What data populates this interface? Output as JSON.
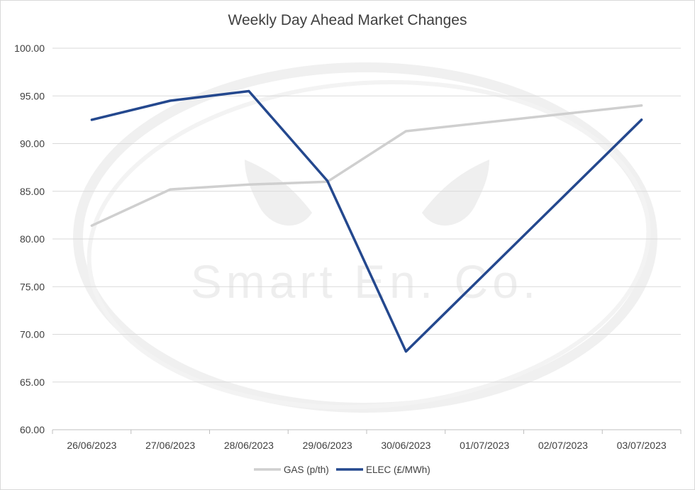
{
  "chart_data": {
    "type": "line",
    "title": "Weekly Day Ahead Market Changes",
    "categories": [
      "26/06/2023",
      "27/06/2023",
      "28/06/2023",
      "29/06/2023",
      "30/06/2023",
      "01/07/2023",
      "02/07/2023",
      "03/07/2023"
    ],
    "ylim": [
      60,
      100
    ],
    "yticks": [
      "60.00",
      "65.00",
      "70.00",
      "75.00",
      "80.00",
      "85.00",
      "90.00",
      "95.00",
      "100.00"
    ],
    "grid": true,
    "legend_position": "bottom",
    "series": [
      {
        "name": "GAS (p/th)",
        "color": "#cfcfcf",
        "values": [
          81.4,
          85.2,
          85.7,
          86.0,
          91.3,
          null,
          null,
          94.0
        ]
      },
      {
        "name": "ELEC (£/MWh)",
        "color": "#24488e",
        "values": [
          92.5,
          94.5,
          95.5,
          86.1,
          68.2,
          null,
          null,
          92.5
        ]
      }
    ]
  },
  "watermark": {
    "text": "Smart En. Co."
  }
}
